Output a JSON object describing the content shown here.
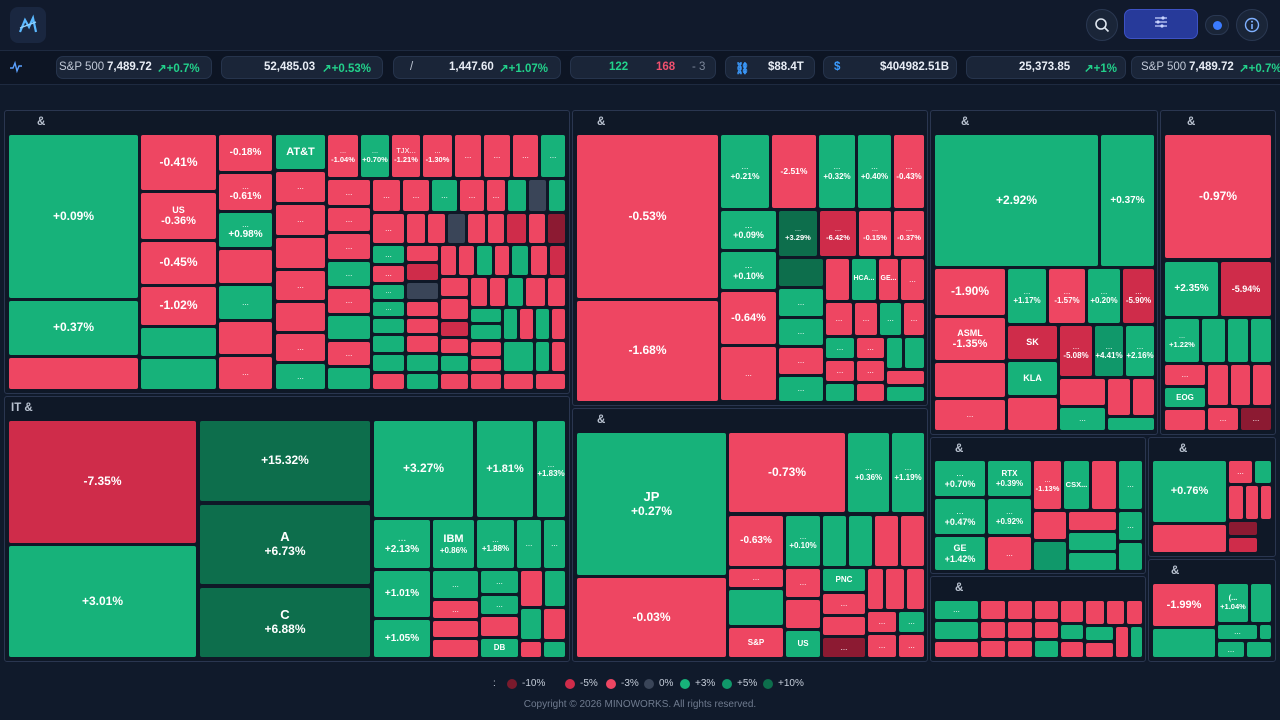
{
  "header": {
    "logo_icon": "chart-logo-icon",
    "search_icon": "search-icon",
    "filter_icon": "sliders-icon",
    "info_icon": "info-icon"
  },
  "ticker": [
    {
      "name": "S&P 500",
      "value": "7,489.72",
      "change": "+0.7%"
    },
    {
      "name": "",
      "value": "52,485.03",
      "change": "+0.53%"
    },
    {
      "name": "/",
      "value": "1,447.60",
      "change": "+1.07%"
    },
    {
      "adv": "122",
      "dec": "168",
      "unch": "- 3"
    },
    {
      "name": "",
      "value": "$88.4T"
    },
    {
      "name": "",
      "value": "$404982.51B"
    },
    {
      "name": "",
      "value": "25,373.85",
      "change": "+1%"
    },
    {
      "name": "S&P 500",
      "value": "7,489.72",
      "change": "+0.7%"
    }
  ],
  "sectors": {
    "consumer": "&",
    "healthcare": "&",
    "tech_semis": "&",
    "energy": "&",
    "it": "IT &",
    "financials": "&",
    "industrials": "&",
    "materials": "&",
    "utilities": "&",
    "realestate": "&"
  },
  "tiles": {
    "wmt": "+0.09%",
    "pg": "+0.37%",
    "ko": "-0.41%",
    "us_label": "US",
    "us_pc": "-0.36%",
    "pm": "-0.45%",
    "mo": "-1.02%",
    "c1": "-0.18%",
    "c2_nm": "...",
    "c2": "-0.61%",
    "c3_nm": "...",
    "c3": "+0.98%",
    "att": "AT&T",
    "s1": "-1.04%",
    "s2": "+0.70%",
    "tjx_nm": "TJX...",
    "tjx": "-1.21%",
    "s4": "-1.30%",
    "lly": "-0.53%",
    "unh": "-1.68%",
    "h1": "+0.21%",
    "h2": "-2.51%",
    "h3": "+0.32%",
    "h4": "+0.40%",
    "h5": "-0.43%",
    "h6": "+0.09%",
    "h7": "+3.29%",
    "h8": "-6.42%",
    "h9": "-0.15%",
    "h10": "-0.37%",
    "h11": "+0.10%",
    "h12": "-0.64%",
    "hca": "HCA...",
    "ge_h": "GE...",
    "nvda": "+2.92%",
    "avgo": "+0.37%",
    "t1": "-1.90%",
    "t2": "+1.17%",
    "t3": "-1.57%",
    "t4": "+0.20%",
    "t5": "-5.90%",
    "asml_nm": "ASML",
    "asml": "-1.35%",
    "sk_nm": "SK",
    "t7": "-5.08%",
    "t8": "+4.41%",
    "t9": "+2.16%",
    "kla_nm": "KLA",
    "xom": "-0.97%",
    "e1": "+2.35%",
    "e2": "-5.94%",
    "e3": "+1.22%",
    "eog": "EOG",
    "aapl": "-7.35%",
    "msft": "+3.01%",
    "it1": "+15.32%",
    "a_nm": "A",
    "a": "+6.73%",
    "c_nm": "C",
    "c": "+6.88%",
    "it2": "+3.27%",
    "it3": "+1.81%",
    "it4": "+1.83%",
    "it5": "+2.13%",
    "ibm_nm": "IBM",
    "ibm": "+0.86%",
    "it6": "+1.88%",
    "it7": "+1.01%",
    "it8": "+1.05%",
    "db": "DB",
    "jp_nm": "JP",
    "jp": "+0.27%",
    "visa": "-0.03%",
    "f1": "-0.73%",
    "f2": "+0.36%",
    "f3": "+1.19%",
    "f4": "-0.63%",
    "f5": "+0.10%",
    "pnc": "PNC",
    "sp_nm": "S&P",
    "us2": "US",
    "i1": "+0.70%",
    "rtx": "RTX",
    "i2": "+0.39%",
    "i3": "-1.13%",
    "csx": "CSX...",
    "i4": "+0.47%",
    "i5": "+0.92%",
    "ge_nm": "GE",
    "i6": "+1.42%",
    "m1": "+0.76%",
    "r1": "-1.99%",
    "r2_nm": "(...",
    "r2": "+1.04%",
    "dots": "..."
  },
  "legend": {
    "label": ":",
    "items": [
      {
        "label": "-10%",
        "color": "#7a1a2c"
      },
      {
        "label": "-5%",
        "color": "#cf2c4a"
      },
      {
        "label": "-3%",
        "color": "#ee4662"
      },
      {
        "label": "0%",
        "color": "#3a4558"
      },
      {
        "label": "+3%",
        "color": "#17b27a"
      },
      {
        "label": "+5%",
        "color": "#10986a"
      },
      {
        "label": "+10%",
        "color": "#0d6e4c"
      }
    ]
  },
  "footer": "Copyright © 2026 MINOWORKS. All rights reserved."
}
